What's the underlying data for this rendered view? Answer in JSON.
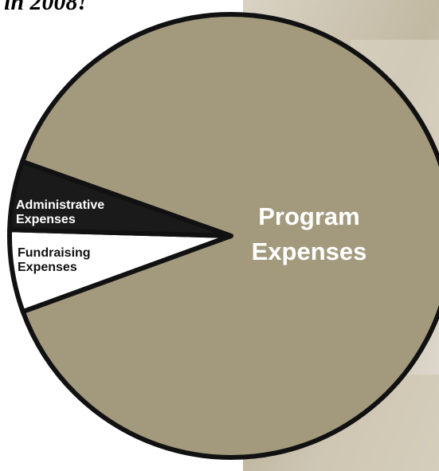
{
  "chart_data": {
    "type": "pie",
    "title": "in 2008!",
    "categories": [
      "Fundraising Expenses",
      "Administrative Expenses",
      "Program Expenses"
    ],
    "values": [
      6,
      5,
      89
    ],
    "colors": [
      "#ffffff",
      "#1a1a1a",
      "#a39a7e"
    ],
    "start_angle": 160
  }
}
